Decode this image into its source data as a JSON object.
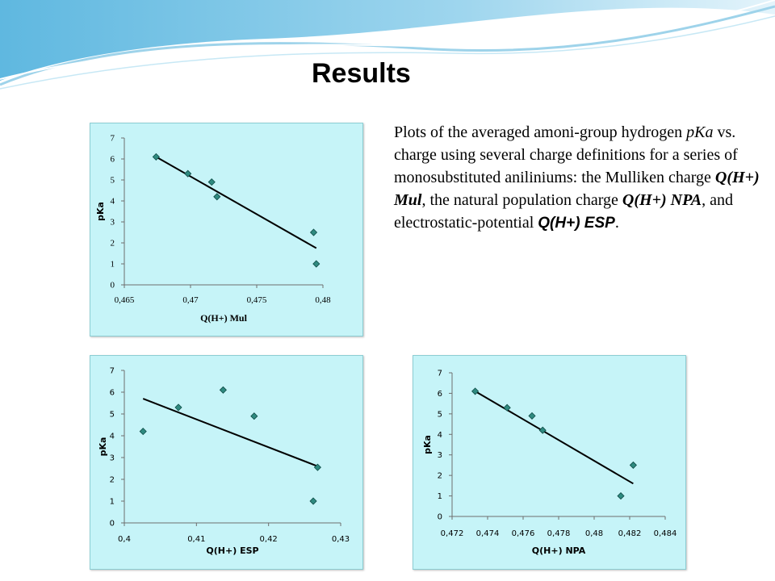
{
  "title": "Results",
  "description": {
    "part1": "Plots of the averaged amoni-group hydrogen ",
    "part2": "pKa",
    "part3": " vs. charge using several charge definitions for a series of monosubstituted aniliniums: the Mulliken charge ",
    "part4": "Q(H+) Mul",
    "part5": ", the natural population charge ",
    "part6": "Q(H+) NPA",
    "part7": ", and electrostatic-potential ",
    "part8": "Q(H+) ESP",
    "part9": "."
  },
  "colors": {
    "panel_bg": "#c6f4f8",
    "panel_border": "#8ccdd3",
    "marker": "#2f8a80",
    "marker_stroke": "#0c4a44",
    "trendline": "#000000"
  },
  "chart_data": [
    {
      "type": "scatter",
      "id": "mul",
      "xlabel": "Q(H+) Mul",
      "ylabel": "pKa",
      "xlim": [
        0.465,
        0.48
      ],
      "ylim": [
        0,
        7
      ],
      "xticks": [
        "0,465",
        "0,47",
        "0,475",
        "0,48"
      ],
      "xtick_values": [
        0.465,
        0.47,
        0.475,
        0.48
      ],
      "yticks": [
        "0",
        "1",
        "2",
        "3",
        "4",
        "5",
        "6",
        "7"
      ],
      "x": [
        0.4674,
        0.4698,
        0.4716,
        0.472,
        0.4793,
        0.4795
      ],
      "y": [
        6.1,
        5.3,
        4.9,
        4.2,
        2.5,
        1.0
      ],
      "trendline": {
        "x": [
          0.4674,
          0.4795
        ],
        "y": [
          6.1,
          1.75
        ]
      },
      "grid": false
    },
    {
      "type": "scatter",
      "id": "esp",
      "xlabel": "Q(H+) ESP",
      "ylabel": "pKa",
      "xlim": [
        0.4,
        0.43
      ],
      "ylim": [
        0,
        7
      ],
      "xticks": [
        "0,4",
        "0,41",
        "0,42",
        "0,43"
      ],
      "xtick_values": [
        0.4,
        0.41,
        0.42,
        0.43
      ],
      "yticks": [
        "0",
        "1",
        "2",
        "3",
        "4",
        "5",
        "6",
        "7"
      ],
      "x": [
        0.4026,
        0.4075,
        0.4137,
        0.418,
        0.4262,
        0.4268
      ],
      "y": [
        4.2,
        5.3,
        6.1,
        4.9,
        1.0,
        2.55
      ],
      "trendline": {
        "x": [
          0.4026,
          0.4268
        ],
        "y": [
          5.7,
          2.6
        ]
      },
      "grid": false
    },
    {
      "type": "scatter",
      "id": "npa",
      "xlabel": "Q(H+) NPA",
      "ylabel": "pKa",
      "xlim": [
        0.472,
        0.484
      ],
      "ylim": [
        0,
        7
      ],
      "xticks": [
        "0,472",
        "0,474",
        "0,476",
        "0,478",
        "0,48",
        "0,482",
        "0,484"
      ],
      "xtick_values": [
        0.472,
        0.474,
        0.476,
        0.478,
        0.48,
        0.482,
        0.484
      ],
      "yticks": [
        "0",
        "1",
        "2",
        "3",
        "4",
        "5",
        "6",
        "7"
      ],
      "x": [
        0.4733,
        0.4751,
        0.4765,
        0.4771,
        0.4815,
        0.4822
      ],
      "y": [
        6.1,
        5.3,
        4.9,
        4.2,
        1.0,
        2.5
      ],
      "trendline": {
        "x": [
          0.4733,
          0.4822
        ],
        "y": [
          6.1,
          1.6
        ]
      },
      "grid": false
    }
  ]
}
